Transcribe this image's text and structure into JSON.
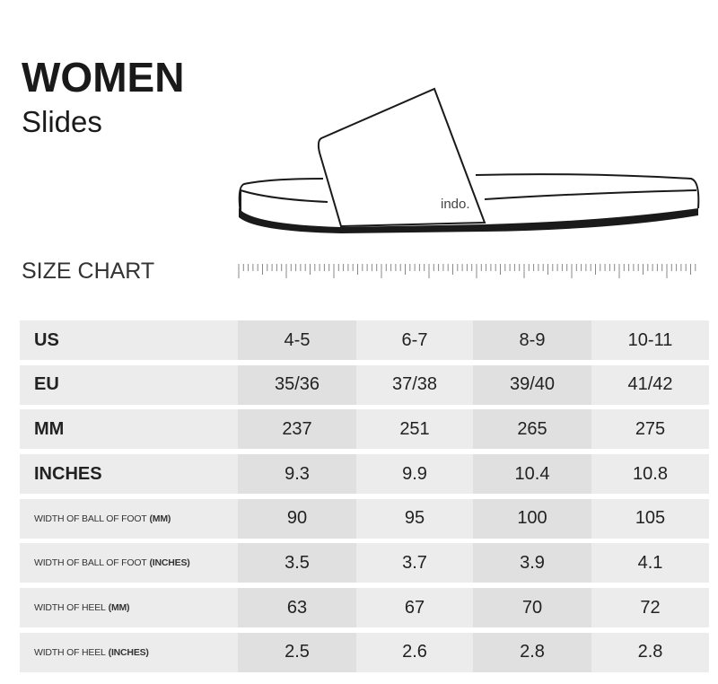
{
  "header": {
    "title": "WOMEN",
    "subtitle": "Slides"
  },
  "illustration": {
    "brand_logo": "indo."
  },
  "size_chart_label": "SIZE CHART",
  "table": {
    "rows": [
      {
        "label": "US",
        "unit": "",
        "values": [
          "4-5",
          "6-7",
          "8-9",
          "10-11"
        ]
      },
      {
        "label": "EU",
        "unit": "",
        "values": [
          "35/36",
          "37/38",
          "39/40",
          "41/42"
        ]
      },
      {
        "label": "MM",
        "unit": "",
        "values": [
          "237",
          "251",
          "265",
          "275"
        ]
      },
      {
        "label": "INCHES",
        "unit": "",
        "values": [
          "9.3",
          "9.9",
          "10.4",
          "10.8"
        ]
      },
      {
        "label": "WIDTH OF BALL OF FOOT",
        "unit": "(MM)",
        "values": [
          "90",
          "95",
          "100",
          "105"
        ]
      },
      {
        "label": "WIDTH OF BALL OF FOOT",
        "unit": "(INCHES)",
        "values": [
          "3.5",
          "3.7",
          "3.9",
          "4.1"
        ]
      },
      {
        "label": "WIDTH OF HEEL",
        "unit": "(MM)",
        "values": [
          "63",
          "67",
          "70",
          "72"
        ]
      },
      {
        "label": "WIDTH OF HEEL",
        "unit": "(INCHES)",
        "values": [
          "2.5",
          "2.6",
          "2.8",
          "2.8"
        ]
      }
    ]
  }
}
